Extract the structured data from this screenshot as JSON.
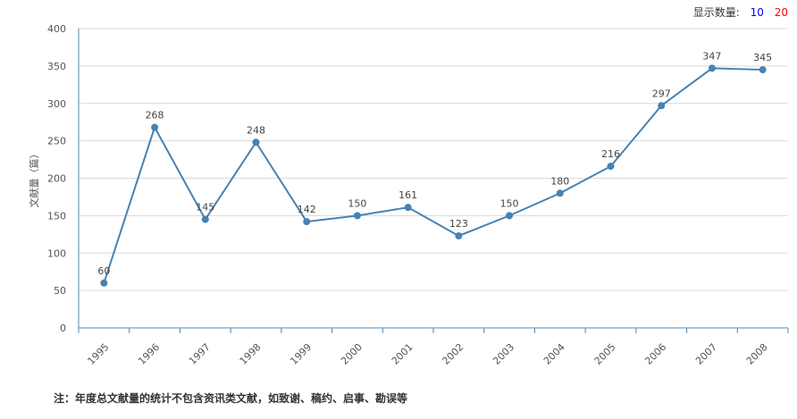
{
  "controls": {
    "label": "显示数量:",
    "option_10": "10",
    "option_20": "20",
    "color_10": "#0000ff",
    "color_20": "#ff0000"
  },
  "note": "注：年度总文献量的统计不包含资讯类文献，如致谢、稿约、启事、勘误等",
  "chart_data": {
    "type": "line",
    "title": "",
    "xlabel": "",
    "ylabel": "文献量（篇）",
    "ylim": [
      0,
      400
    ],
    "yticks": [
      0,
      50,
      100,
      150,
      200,
      250,
      300,
      350,
      400
    ],
    "grid": true,
    "line_color": "#4682b4",
    "categories": [
      "1995",
      "1996",
      "1997",
      "1998",
      "1999",
      "2000",
      "2001",
      "2002",
      "2003",
      "2004",
      "2005",
      "2006",
      "2007",
      "2008"
    ],
    "series": [
      {
        "values": [
          60,
          268,
          145,
          248,
          142,
          150,
          161,
          123,
          150,
          180,
          216,
          297,
          347,
          345
        ]
      }
    ]
  }
}
